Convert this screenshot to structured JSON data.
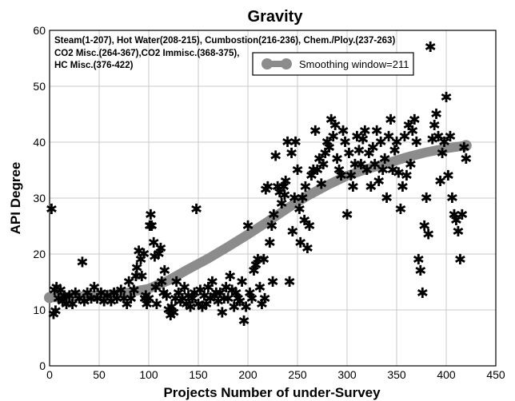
{
  "chart_data": {
    "type": "scatter",
    "title": "Gravity",
    "xlabel": "Projects Number of under-Survey",
    "ylabel": "API Degree",
    "xlim": [
      0,
      450
    ],
    "ylim": [
      0,
      60
    ],
    "xticks": [
      "0",
      "50",
      "100",
      "150",
      "200",
      "250",
      "300",
      "350",
      "400",
      "450"
    ],
    "yticks": [
      "0",
      "10",
      "20",
      "30",
      "40",
      "50",
      "60"
    ],
    "grid": true,
    "annotation_lines": [
      "Steam(1-207), Hot Water(208-215), Cumbostion(216-236), Chem./Ploy.(237-263)",
      "CO2 Misc.(264-367),CO2 Immisc.(368-375),",
      "HC Misc.(376-422)"
    ],
    "legend": {
      "placement": "top-right",
      "label": "Smoothing window=211"
    },
    "marker_color": "#000000",
    "smooth_color": "#8c8c8c",
    "points": [
      [
        2,
        28
      ],
      [
        4,
        9.2
      ],
      [
        5,
        13.5
      ],
      [
        6,
        9.8
      ],
      [
        7,
        14
      ],
      [
        9,
        12
      ],
      [
        11,
        13.5
      ],
      [
        13,
        11.5
      ],
      [
        15,
        12.5
      ],
      [
        17,
        11
      ],
      [
        20,
        12.5
      ],
      [
        23,
        11
      ],
      [
        26,
        13
      ],
      [
        30,
        12
      ],
      [
        33,
        18.5
      ],
      [
        35,
        11.5
      ],
      [
        38,
        13
      ],
      [
        42,
        12
      ],
      [
        45,
        14
      ],
      [
        48,
        12
      ],
      [
        52,
        13
      ],
      [
        55,
        11.5
      ],
      [
        58,
        12.5
      ],
      [
        62,
        11.5
      ],
      [
        65,
        13
      ],
      [
        68,
        12
      ],
      [
        72,
        13.5
      ],
      [
        75,
        12
      ],
      [
        78,
        11
      ],
      [
        80,
        15
      ],
      [
        82,
        12
      ],
      [
        85,
        13.5
      ],
      [
        87,
        16
      ],
      [
        88,
        17.5
      ],
      [
        90,
        20.5
      ],
      [
        92,
        19
      ],
      [
        93,
        16
      ],
      [
        95,
        20
      ],
      [
        96,
        12
      ],
      [
        97,
        12.5
      ],
      [
        98,
        11
      ],
      [
        100,
        12
      ],
      [
        101,
        25
      ],
      [
        102,
        27
      ],
      [
        103,
        25
      ],
      [
        105,
        22
      ],
      [
        106,
        19.5
      ],
      [
        107,
        14
      ],
      [
        108,
        11
      ],
      [
        110,
        20
      ],
      [
        112,
        21
      ],
      [
        113,
        15
      ],
      [
        115,
        13
      ],
      [
        116,
        17
      ],
      [
        118,
        12.5
      ],
      [
        120,
        10
      ],
      [
        122,
        9
      ],
      [
        123,
        10.5
      ],
      [
        125,
        9.5
      ],
      [
        127,
        12
      ],
      [
        128,
        15
      ],
      [
        130,
        13
      ],
      [
        132,
        11.5
      ],
      [
        134,
        12
      ],
      [
        136,
        14
      ],
      [
        138,
        11
      ],
      [
        140,
        12.5
      ],
      [
        142,
        10.5
      ],
      [
        144,
        12
      ],
      [
        146,
        13
      ],
      [
        148,
        28
      ],
      [
        150,
        11
      ],
      [
        152,
        13.5
      ],
      [
        154,
        10.5
      ],
      [
        156,
        12.5
      ],
      [
        158,
        11
      ],
      [
        160,
        14
      ],
      [
        162,
        12
      ],
      [
        164,
        15
      ],
      [
        166,
        12.5
      ],
      [
        168,
        13
      ],
      [
        170,
        11.5
      ],
      [
        172,
        13
      ],
      [
        174,
        9.5
      ],
      [
        176,
        12
      ],
      [
        178,
        14
      ],
      [
        180,
        12
      ],
      [
        182,
        16
      ],
      [
        184,
        13.5
      ],
      [
        186,
        10.5
      ],
      [
        188,
        13
      ],
      [
        190,
        12
      ],
      [
        192,
        11.5
      ],
      [
        194,
        15
      ],
      [
        196,
        8
      ],
      [
        198,
        10.5
      ],
      [
        200,
        25
      ],
      [
        202,
        13
      ],
      [
        204,
        12
      ],
      [
        206,
        17
      ],
      [
        208,
        18
      ],
      [
        210,
        19
      ],
      [
        212,
        14
      ],
      [
        214,
        11
      ],
      [
        216,
        19
      ],
      [
        217,
        12
      ],
      [
        218,
        31.5
      ],
      [
        220,
        32
      ],
      [
        222,
        22
      ],
      [
        224,
        25
      ],
      [
        225,
        15
      ],
      [
        226,
        27
      ],
      [
        228,
        37.5
      ],
      [
        230,
        32
      ],
      [
        232,
        31
      ],
      [
        234,
        29
      ],
      [
        236,
        32
      ],
      [
        237,
        30.5
      ],
      [
        238,
        33
      ],
      [
        240,
        40
      ],
      [
        242,
        15
      ],
      [
        244,
        38
      ],
      [
        245,
        24
      ],
      [
        247,
        30
      ],
      [
        248,
        40
      ],
      [
        250,
        35
      ],
      [
        252,
        28
      ],
      [
        253,
        22
      ],
      [
        255,
        30
      ],
      [
        257,
        26
      ],
      [
        258,
        32
      ],
      [
        260,
        21
      ],
      [
        262,
        25
      ],
      [
        264,
        34
      ],
      [
        266,
        35
      ],
      [
        268,
        42
      ],
      [
        270,
        35
      ],
      [
        272,
        37
      ],
      [
        274,
        32.5
      ],
      [
        276,
        36
      ],
      [
        278,
        38
      ],
      [
        280,
        40
      ],
      [
        282,
        39
      ],
      [
        284,
        44
      ],
      [
        286,
        41
      ],
      [
        288,
        43
      ],
      [
        290,
        37
      ],
      [
        292,
        35
      ],
      [
        294,
        34
      ],
      [
        296,
        42
      ],
      [
        298,
        40
      ],
      [
        300,
        27
      ],
      [
        302,
        38
      ],
      [
        304,
        34
      ],
      [
        306,
        32
      ],
      [
        308,
        36
      ],
      [
        310,
        41
      ],
      [
        312,
        38.5
      ],
      [
        314,
        36
      ],
      [
        316,
        40.5
      ],
      [
        318,
        42
      ],
      [
        320,
        35
      ],
      [
        322,
        38
      ],
      [
        324,
        32
      ],
      [
        326,
        39
      ],
      [
        328,
        36
      ],
      [
        330,
        42
      ],
      [
        332,
        33
      ],
      [
        334,
        40
      ],
      [
        336,
        35
      ],
      [
        338,
        37
      ],
      [
        340,
        30
      ],
      [
        342,
        41
      ],
      [
        344,
        44
      ],
      [
        346,
        35
      ],
      [
        348,
        38.5
      ],
      [
        350,
        40
      ],
      [
        352,
        34.5
      ],
      [
        354,
        28
      ],
      [
        356,
        32
      ],
      [
        358,
        41
      ],
      [
        360,
        34
      ],
      [
        362,
        43
      ],
      [
        364,
        36
      ],
      [
        366,
        42
      ],
      [
        368,
        44
      ],
      [
        370,
        40
      ],
      [
        372,
        19
      ],
      [
        374,
        17
      ],
      [
        376,
        13
      ],
      [
        378,
        25
      ],
      [
        380,
        30
      ],
      [
        382,
        23.5
      ],
      [
        384,
        57
      ],
      [
        386,
        40.5
      ],
      [
        388,
        43
      ],
      [
        390,
        45
      ],
      [
        392,
        41
      ],
      [
        394,
        33
      ],
      [
        396,
        38
      ],
      [
        398,
        40
      ],
      [
        400,
        48
      ],
      [
        402,
        34
      ],
      [
        404,
        41
      ],
      [
        406,
        30
      ],
      [
        408,
        27
      ],
      [
        410,
        26
      ],
      [
        412,
        24
      ],
      [
        414,
        19
      ],
      [
        416,
        27
      ],
      [
        418,
        39
      ],
      [
        420,
        37
      ]
    ],
    "smooth_curve": [
      [
        0,
        12.2
      ],
      [
        25,
        12.4
      ],
      [
        50,
        12.6
      ],
      [
        75,
        13
      ],
      [
        100,
        13.8
      ],
      [
        120,
        15.3
      ],
      [
        140,
        17.3
      ],
      [
        160,
        19.2
      ],
      [
        180,
        21.3
      ],
      [
        200,
        23.5
      ],
      [
        220,
        25.8
      ],
      [
        240,
        28.2
      ],
      [
        260,
        30.4
      ],
      [
        280,
        32.3
      ],
      [
        300,
        34
      ],
      [
        320,
        35.2
      ],
      [
        340,
        36.2
      ],
      [
        360,
        37.3
      ],
      [
        380,
        38.2
      ],
      [
        400,
        38.9
      ],
      [
        420,
        39.4
      ]
    ]
  }
}
